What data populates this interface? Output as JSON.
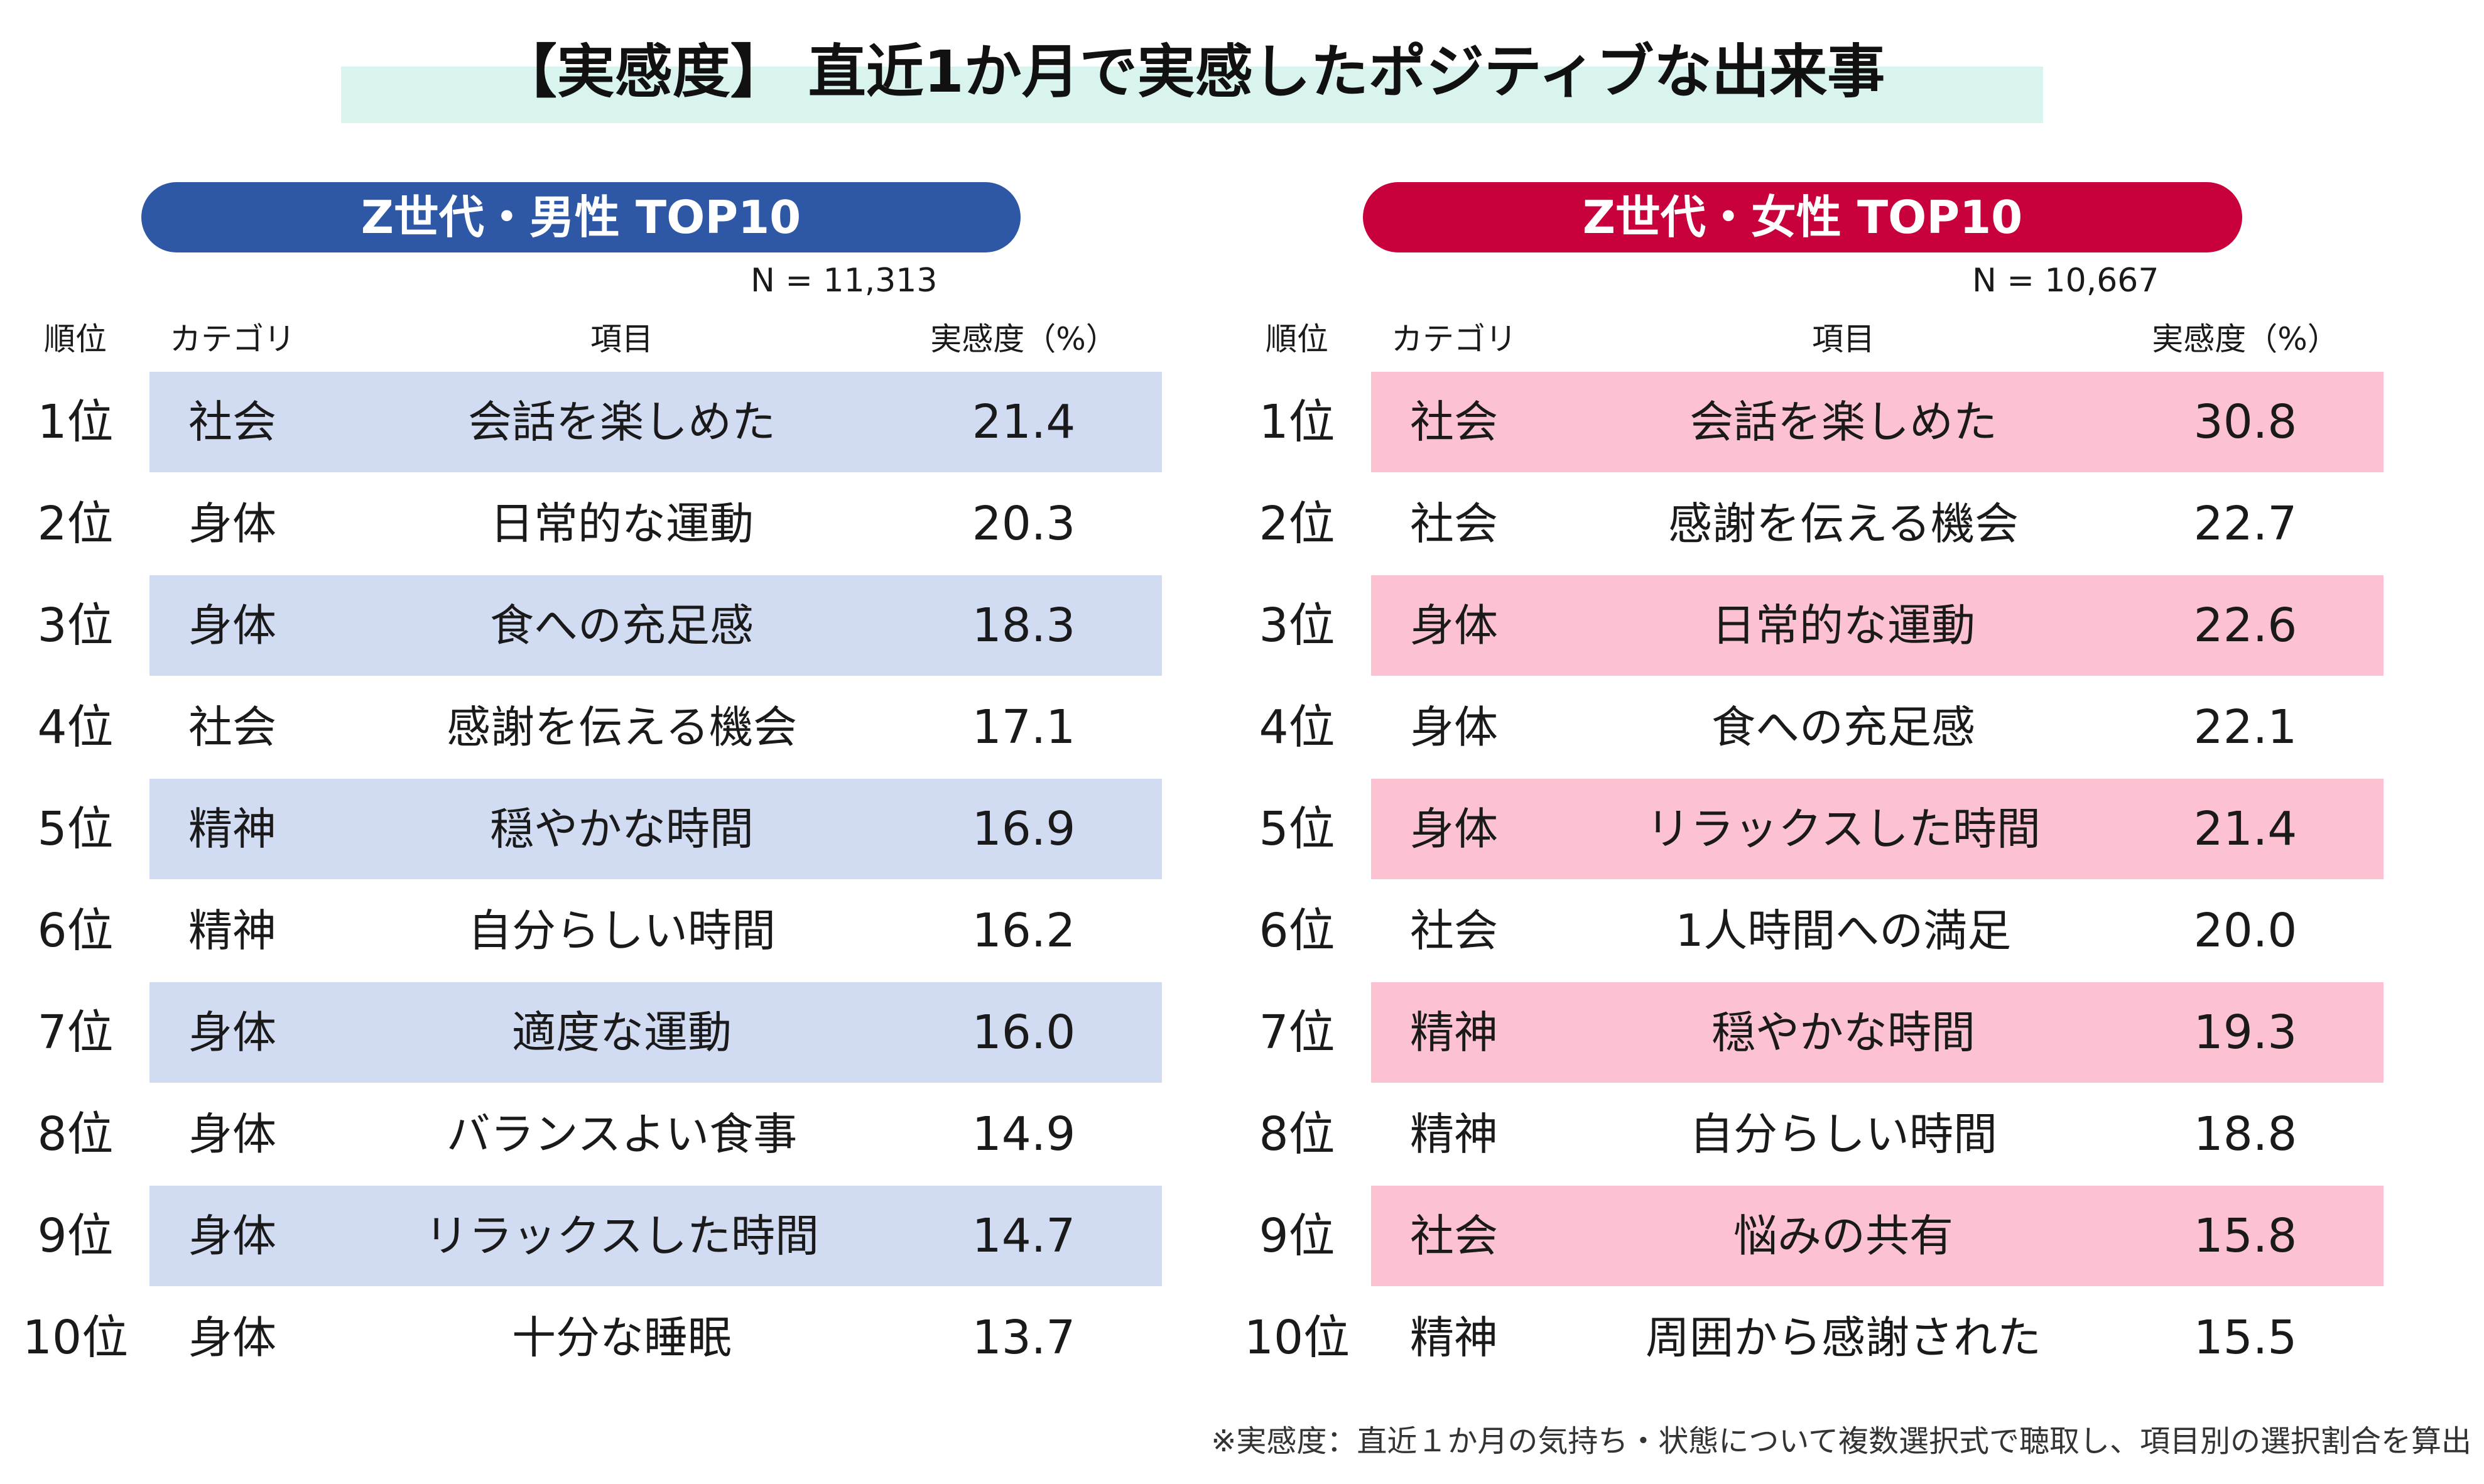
{
  "title": "【実感度】 直近1か月で実感したポジティブな出来事",
  "male": {
    "heading": "Z世代・男性 TOP10",
    "n_label": "N = 11,313",
    "headers": {
      "rank": "順位",
      "category": "カテゴリ",
      "item": "項目",
      "value": "実感度（%）"
    },
    "rows": [
      {
        "rank": "1位",
        "category": "社会",
        "item": "会話を楽しめた",
        "value": "21.4"
      },
      {
        "rank": "2位",
        "category": "身体",
        "item": "日常的な運動",
        "value": "20.3"
      },
      {
        "rank": "3位",
        "category": "身体",
        "item": "食への充足感",
        "value": "18.3"
      },
      {
        "rank": "4位",
        "category": "社会",
        "item": "感謝を伝える機会",
        "value": "17.1"
      },
      {
        "rank": "5位",
        "category": "精神",
        "item": "穏やかな時間",
        "value": "16.9"
      },
      {
        "rank": "6位",
        "category": "精神",
        "item": "自分らしい時間",
        "value": "16.2"
      },
      {
        "rank": "7位",
        "category": "身体",
        "item": "適度な運動",
        "value": "16.0"
      },
      {
        "rank": "8位",
        "category": "身体",
        "item": "バランスよい食事",
        "value": "14.9"
      },
      {
        "rank": "9位",
        "category": "身体",
        "item": "リラックスした時間",
        "value": "14.7"
      },
      {
        "rank": "10位",
        "category": "身体",
        "item": "十分な睡眠",
        "value": "13.7"
      }
    ]
  },
  "female": {
    "heading": "Z世代・女性 TOP10",
    "n_label": "N = 10,667",
    "headers": {
      "rank": "順位",
      "category": "カテゴリ",
      "item": "項目",
      "value": "実感度（%）"
    },
    "rows": [
      {
        "rank": "1位",
        "category": "社会",
        "item": "会話を楽しめた",
        "value": "30.8"
      },
      {
        "rank": "2位",
        "category": "社会",
        "item": "感謝を伝える機会",
        "value": "22.7"
      },
      {
        "rank": "3位",
        "category": "身体",
        "item": "日常的な運動",
        "value": "22.6"
      },
      {
        "rank": "4位",
        "category": "身体",
        "item": "食への充足感",
        "value": "22.1"
      },
      {
        "rank": "5位",
        "category": "身体",
        "item": "リラックスした時間",
        "value": "21.4"
      },
      {
        "rank": "6位",
        "category": "社会",
        "item": "1人時間への満足",
        "value": "20.0"
      },
      {
        "rank": "7位",
        "category": "精神",
        "item": "穏やかな時間",
        "value": "19.3"
      },
      {
        "rank": "8位",
        "category": "精神",
        "item": "自分らしい時間",
        "value": "18.8"
      },
      {
        "rank": "9位",
        "category": "社会",
        "item": "悩みの共有",
        "value": "15.8"
      },
      {
        "rank": "10位",
        "category": "精神",
        "item": "周囲から感謝された",
        "value": "15.5"
      }
    ]
  },
  "colors": {
    "male_accent": "#2e58a6",
    "male_row": "#d1dbf1",
    "female_accent": "#c8003c",
    "female_row": "#fdc2d1",
    "title_band": "#d9f3ee"
  },
  "footnote": "※実感度：直近１か月の気持ち・状態について複数選択式で聴取し、項目別の選択割合を算出"
}
